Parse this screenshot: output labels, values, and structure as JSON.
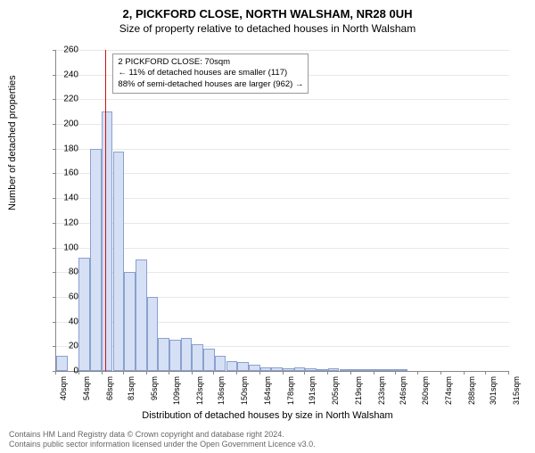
{
  "title_line1": "2, PICKFORD CLOSE, NORTH WALSHAM, NR28 0UH",
  "title_line2": "Size of property relative to detached houses in North Walsham",
  "ylabel": "Number of detached properties",
  "xlabel": "Distribution of detached houses by size in North Walsham",
  "footer_line1": "Contains HM Land Registry data © Crown copyright and database right 2024.",
  "footer_line2": "Contains public sector information licensed under the Open Government Licence v3.0.",
  "chart": {
    "type": "histogram",
    "ylim": [
      0,
      260
    ],
    "ytick_step": 20,
    "xticks": [
      40,
      54,
      68,
      81,
      95,
      109,
      123,
      136,
      150,
      164,
      178,
      191,
      205,
      219,
      233,
      246,
      260,
      274,
      288,
      301,
      315
    ],
    "xtick_suffix": "sqm",
    "bar_fill": "#d6e0f5",
    "bar_stroke": "#8aa0d0",
    "background": "#ffffff",
    "grid_color": "#e8e8e8",
    "axis_color": "#888888",
    "bars": [
      12,
      0,
      92,
      180,
      210,
      178,
      80,
      90,
      60,
      27,
      25,
      27,
      22,
      18,
      12,
      8,
      7,
      5,
      3,
      3,
      2,
      3,
      2,
      1,
      2,
      1,
      1,
      1,
      1,
      1,
      1,
      0,
      0,
      0,
      0,
      0,
      0,
      0,
      0,
      0
    ],
    "reference_line": {
      "x_sqm": 70,
      "color": "#d01010",
      "width": 1
    },
    "annotation": {
      "lines": [
        "2 PICKFORD CLOSE: 70sqm",
        "← 11% of detached houses are smaller (117)",
        "88% of semi-detached houses are larger (962) →"
      ],
      "border_color": "#999999",
      "bg": "#ffffff",
      "fontsize": 9.5
    }
  }
}
